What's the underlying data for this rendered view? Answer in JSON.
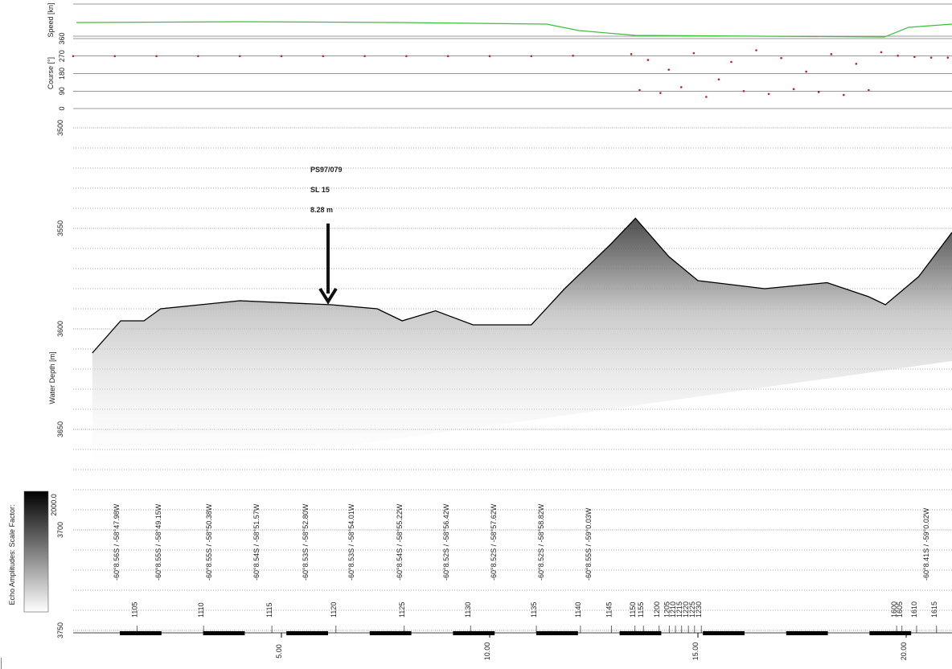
{
  "chart_data": [
    {
      "type": "scatter",
      "ylabel": "Course [°]",
      "speed_label": "Speed [kn]",
      "color": "#c0202a",
      "x": [
        0,
        1,
        2,
        3,
        4,
        5,
        6,
        7,
        8,
        9,
        10,
        11,
        12,
        13.4,
        13.6,
        13.8,
        14.1,
        14.3,
        14.6,
        14.9,
        15.2,
        15.5,
        15.8,
        16.1,
        16.4,
        16.7,
        17.0,
        17.3,
        17.6,
        17.9,
        18.2,
        18.5,
        18.8,
        19.1,
        19.4,
        19.8,
        20.2,
        20.6,
        21
      ],
      "values": [
        270,
        270,
        270,
        270,
        270,
        270,
        270,
        270,
        270,
        270,
        270,
        270,
        272,
        280,
        95,
        250,
        80,
        200,
        110,
        285,
        60,
        150,
        240,
        90,
        300,
        75,
        260,
        100,
        190,
        85,
        280,
        70,
        230,
        95,
        290,
        272,
        266,
        262,
        262
      ],
      "xlim": [
        0,
        21.1
      ],
      "ylim": [
        0,
        360
      ],
      "yticks": [
        0,
        90,
        180,
        270,
        360
      ],
      "grid": true
    },
    {
      "type": "line",
      "ylabel": "Water Depth [m]",
      "color": "#000000",
      "x": [
        0.46,
        1.14,
        1.7,
        2.1,
        4.0,
        6.2,
        7.3,
        7.9,
        8.7,
        9.6,
        11.0,
        11.8,
        12.9,
        13.5,
        14.3,
        15.0,
        16.6,
        18.1,
        19.1,
        19.5,
        20.3,
        21.1
      ],
      "values": [
        3612,
        3596,
        3596,
        3590,
        3586,
        3588,
        3590,
        3596,
        3591,
        3598,
        3598,
        3580,
        3558,
        3545,
        3564,
        3576,
        3580,
        3577,
        3584,
        3588,
        3574,
        3552
      ],
      "xlim": [
        0,
        21.1
      ],
      "ylim": [
        3750,
        3500
      ],
      "yticks": [
        3500,
        3550,
        3600,
        3650,
        3700,
        3750
      ],
      "minor_yticks": [
        3510,
        3520,
        3530,
        3540,
        3560,
        3570,
        3580,
        3590,
        3610,
        3620,
        3630,
        3640,
        3660,
        3670,
        3680,
        3690,
        3710,
        3720,
        3730,
        3740
      ],
      "xticks": [
        {
          "value": 5,
          "label": "5.00"
        },
        {
          "value": 10,
          "label": "10.00"
        },
        {
          "value": 15,
          "label": "15.00"
        },
        {
          "value": 20,
          "label": "20.00"
        }
      ],
      "annotation": {
        "lines": [
          "PS97/079",
          "SL 15",
          "8.28 m"
        ],
        "x": 6.12,
        "y": 3588
      },
      "positions": [
        {
          "label": "-60°8.56S / -58°47.98W",
          "x": 1.1
        },
        {
          "label": "-60°8.55S / -58°49.15W",
          "x": 2.1
        },
        {
          "label": "-60°8.55S / -58°50.38W",
          "x": 3.32
        },
        {
          "label": "-60°8.54S / -58°51.57W",
          "x": 4.46
        },
        {
          "label": "-60°8.53S / -58°52.80W",
          "x": 5.64
        },
        {
          "label": "-60°8.53S / -58°54.01W",
          "x": 6.74
        },
        {
          "label": "-60°8.54S / -58°55.22W",
          "x": 7.9
        },
        {
          "label": "-60°8.52S / -58°56.42W",
          "x": 9.02
        },
        {
          "label": "-60°8.52S / -58°57.62W",
          "x": 10.15
        },
        {
          "label": "-60°8.52S / -58°58.82W",
          "x": 11.29
        },
        {
          "label": "-60°8.55S / -59°0.03W",
          "x": 12.43
        },
        {
          "label": "-60°8.41S / -59°0.02W",
          "x": 20.54
        }
      ],
      "times": [
        {
          "label": "1105",
          "x": 1.53
        },
        {
          "label": "1110",
          "x": 3.13
        },
        {
          "label": "1115",
          "x": 4.77
        },
        {
          "label": "1120",
          "x": 6.31
        },
        {
          "label": "1125",
          "x": 7.95
        },
        {
          "label": "1130",
          "x": 9.54
        },
        {
          "label": "1135",
          "x": 11.12
        },
        {
          "label": "1140",
          "x": 12.18
        },
        {
          "label": "1145",
          "x": 12.92
        },
        {
          "label": "1150",
          "x": 13.49
        },
        {
          "label": "1155",
          "x": 13.69
        },
        {
          "label": "1200",
          "x": 14.07
        },
        {
          "label": "1205",
          "x": 14.31
        },
        {
          "label": "1210",
          "x": 14.46
        },
        {
          "label": "1215",
          "x": 14.61
        },
        {
          "label": "1220",
          "x": 14.77
        },
        {
          "label": "1225",
          "x": 14.92
        },
        {
          "label": "1230",
          "x": 15.08
        },
        {
          "label": "1600",
          "x": 19.77
        },
        {
          "label": "1605",
          "x": 19.9
        },
        {
          "label": "1610",
          "x": 20.25
        },
        {
          "label": "1615",
          "x": 20.73
        }
      ],
      "colorbar": {
        "label": "Echo Amplitudes:  Scale Factor:",
        "max_label": "2000.0"
      }
    }
  ]
}
